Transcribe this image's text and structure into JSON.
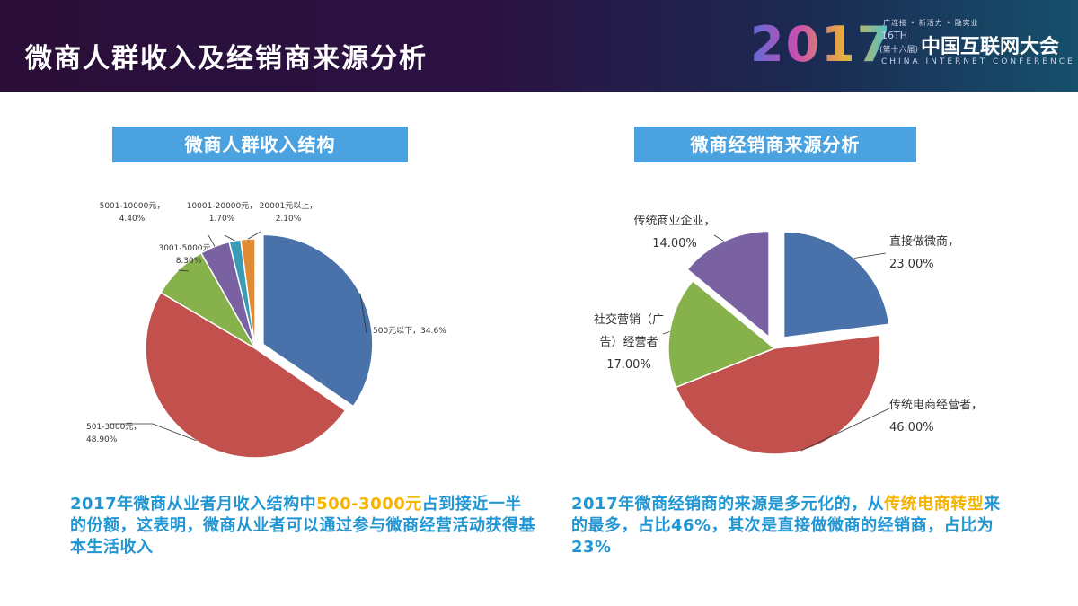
{
  "header": {
    "title": "微商人群收入及经销商来源分析"
  },
  "logo": {
    "year": "2017",
    "slogan": "广连接 • 新活力 • 融实业",
    "edition": "16TH",
    "session": "(第十六届)",
    "name_cn": "中国互联网大会",
    "name_en": "CHINA INTERNET CONFERENCE"
  },
  "colors": {
    "blue": "#4872a9",
    "red": "#c2504c",
    "green": "#86b14b",
    "purple": "#7a62a2",
    "teal": "#3a9bb5",
    "orange": "#e08a34",
    "accent": "#4aa3e0",
    "highlight": "#f5b400"
  },
  "left_section": {
    "title": "微商人群收入结构",
    "caption_parts": [
      "2017年微商从业者月收入结构中",
      "500-3000元",
      "占到接近一半的份额，这表明，微商从业者可以通过参与微商经营活动获得基本生活收入"
    ]
  },
  "right_section": {
    "title": "微商经销商来源分析",
    "caption_parts": [
      "2017年微商经销商的来源是多元化的，从",
      "传统电商转型",
      "来的最多，占比46%，其次是直接做微商的经销商，占比为23%"
    ]
  },
  "chart_data": [
    {
      "type": "pie",
      "title": "微商人群收入结构",
      "slices": [
        {
          "label": "500元以下",
          "value": 34.6,
          "display": "34.6%",
          "color": "#4872a9"
        },
        {
          "label": "501-3000元",
          "value": 48.9,
          "display": "48.90%",
          "color": "#c2504c"
        },
        {
          "label": "3001-5000元",
          "value": 8.3,
          "display": "8.30%",
          "color": "#86b14b"
        },
        {
          "label": "5001-10000元",
          "value": 4.4,
          "display": "4.40%",
          "color": "#7a62a2"
        },
        {
          "label": "10001-20000元",
          "value": 1.7,
          "display": "1.70%",
          "color": "#3a9bb5"
        },
        {
          "label": "20001元以上",
          "value": 2.1,
          "display": "2.10%",
          "color": "#e08a34"
        }
      ]
    },
    {
      "type": "pie",
      "title": "微商经销商来源分析",
      "slices": [
        {
          "label": "直接做微商",
          "value": 23.0,
          "display": "23.00%",
          "color": "#4872a9"
        },
        {
          "label": "传统电商经营者",
          "value": 46.0,
          "display": "46.00%",
          "color": "#c2504c"
        },
        {
          "label": "社交营销（广告）经营者",
          "label_lines": [
            "社交营销（广",
            "告）经营者"
          ],
          "value": 17.0,
          "display": "17.00%",
          "color": "#86b14b"
        },
        {
          "label": "传统商业企业",
          "value": 14.0,
          "display": "14.00%",
          "color": "#7a62a2"
        }
      ]
    }
  ]
}
